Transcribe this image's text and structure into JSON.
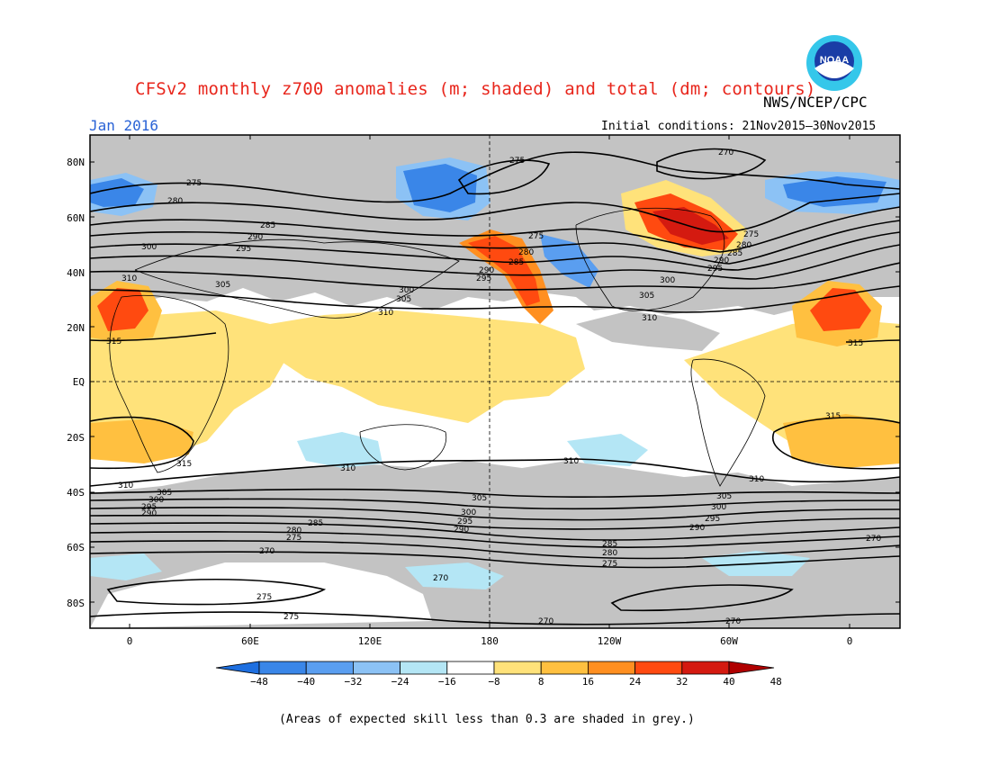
{
  "header": {
    "title": "CFSv2 monthly z700 anomalies (m; shaded) and total (dm; contours)",
    "agency": "NWS/NCEP/CPC",
    "month": "Jan 2016",
    "initial_conditions": "Initial conditions: 21Nov2015–30Nov2015",
    "logo_text": "NOAA"
  },
  "axes": {
    "lat_labels": [
      "80N",
      "60N",
      "40N",
      "20N",
      "EQ",
      "20S",
      "40S",
      "60S",
      "80S"
    ],
    "lon_labels": [
      "0",
      "60E",
      "120E",
      "180",
      "120W",
      "60W",
      "0"
    ]
  },
  "colorbar": {
    "labels": [
      "−48",
      "−40",
      "−32",
      "−24",
      "−16",
      "−8",
      "8",
      "16",
      "24",
      "32",
      "40",
      "48"
    ],
    "colors": [
      "#1e6fe0",
      "#3a86e8",
      "#5a9ef0",
      "#8cc2f5",
      "#b4e6f5",
      "#ffffff",
      "#ffe27a",
      "#ffc040",
      "#ff8f20",
      "#ff4a10",
      "#d41a10",
      "#b00000"
    ]
  },
  "contour_labels": [
    "270",
    "275",
    "280",
    "285",
    "290",
    "295",
    "300",
    "305",
    "310",
    "315"
  ],
  "footnote": "(Areas of expected skill less than 0.3 are shaded in grey.)",
  "colors": {
    "grey_skill": "#c3c3c3",
    "title": "#e8261c",
    "month": "#2a63d6"
  }
}
